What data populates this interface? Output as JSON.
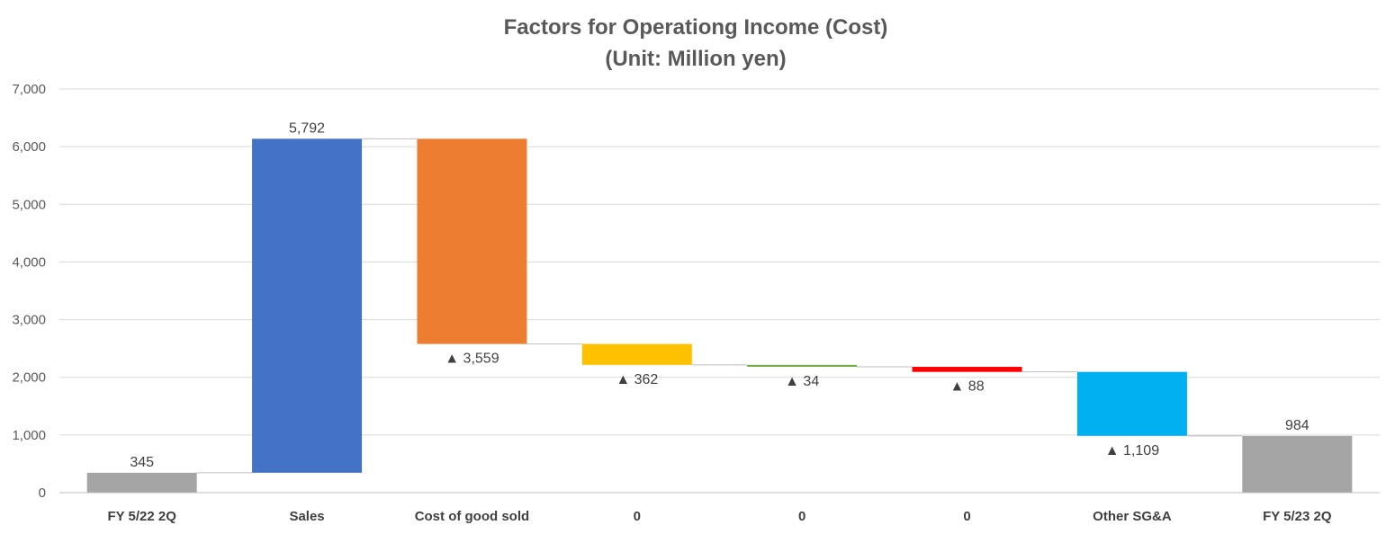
{
  "chart_data": {
    "type": "bar",
    "subtype": "waterfall",
    "title": "Factors for Operationg Income (Cost)",
    "subtitle": "(Unit: Million yen)",
    "xlabel": "",
    "ylabel": "",
    "ylim": [
      0,
      7000
    ],
    "yticks": [
      0,
      1000,
      2000,
      3000,
      4000,
      5000,
      6000,
      7000
    ],
    "ytick_labels": [
      "0",
      "1,000",
      "2,000",
      "3,000",
      "4,000",
      "5,000",
      "6,000",
      "7,000"
    ],
    "grid": true,
    "legend": "none",
    "categories": [
      "FY 5/22 2Q",
      "Sales",
      "Cost of good sold",
      "0",
      "0",
      "0",
      "Other SG&A",
      "FY 5/23 2Q"
    ],
    "bars": [
      {
        "category": "FY 5/22 2Q",
        "bottom": 0,
        "top": 345,
        "label": "345",
        "label_pos": "above",
        "color": "#a5a5a5"
      },
      {
        "category": "Sales",
        "bottom": 345,
        "top": 6137,
        "label": "5,792",
        "label_pos": "above",
        "color": "#4472c4"
      },
      {
        "category": "Cost of good sold",
        "bottom": 2578,
        "top": 6137,
        "label": "▲ 3,559",
        "label_pos": "below",
        "color": "#ed7d31"
      },
      {
        "category": "0",
        "bottom": 2216,
        "top": 2578,
        "label": "▲ 362",
        "label_pos": "below",
        "color": "#ffc000"
      },
      {
        "category": "0",
        "bottom": 2182,
        "top": 2216,
        "label": "▲ 34",
        "label_pos": "below",
        "color": "#70ad47"
      },
      {
        "category": "0",
        "bottom": 2094,
        "top": 2182,
        "label": "▲ 88",
        "label_pos": "below",
        "color": "#ff0000"
      },
      {
        "category": "Other SG&A",
        "bottom": 985,
        "top": 2094,
        "label": "▲ 1,109",
        "label_pos": "below",
        "color": "#00b0f0"
      },
      {
        "category": "FY 5/23 2Q",
        "bottom": 0,
        "top": 984,
        "label": "984",
        "label_pos": "above",
        "color": "#a5a5a5"
      }
    ],
    "colors": {
      "gridline": "#d9d9d9",
      "axis": "#bfbfbf",
      "text": "#595959"
    }
  }
}
